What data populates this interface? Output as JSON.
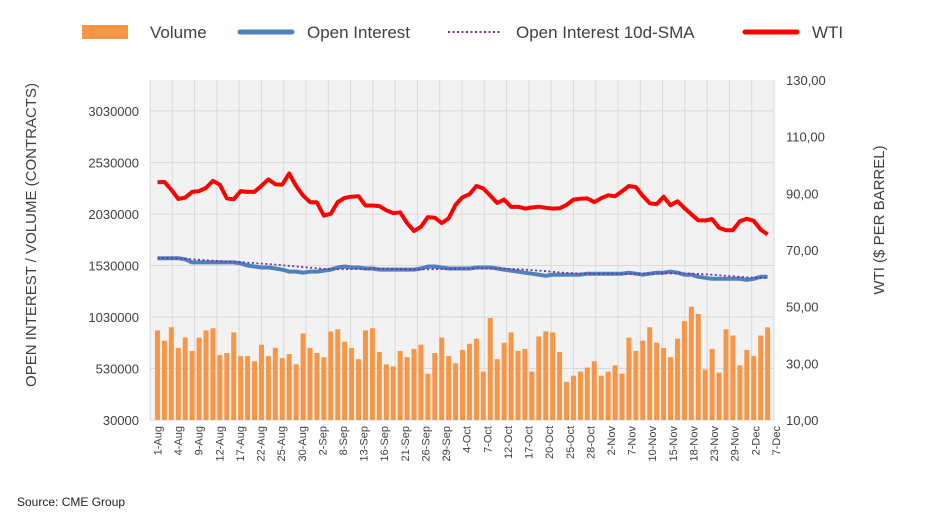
{
  "legend": {
    "volume": "Volume",
    "oi": "Open Interest",
    "sma": "Open Interest 10d-SMA",
    "wti": "WTI"
  },
  "colors": {
    "volume": "#f79646",
    "oi": "#4f81bd",
    "sma": "#7030a0",
    "wti": "#ff0000",
    "grid": "#d9d9d9",
    "plot_bg": "#f2f2f2"
  },
  "source": "Source: CME Group",
  "chart_data": {
    "type": "bar+line",
    "ylabel_left": "OPEN INTEREST / VOLUME (CONTRACTS)",
    "ylabel_right": "WTI ($ PER BARREL)",
    "y_left_ticks": [
      "30000",
      "530000",
      "1030000",
      "1530000",
      "2030000",
      "2530000",
      "3030000"
    ],
    "y_left_range": [
      30000,
      3330000
    ],
    "y_right_ticks": [
      "10,00",
      "30,00",
      "50,00",
      "70,00",
      "90,00",
      "110,00",
      "130,00"
    ],
    "y_right_range": [
      10,
      130
    ],
    "x_tick_labels": [
      "1-Aug",
      "4-Aug",
      "9-Aug",
      "12-Aug",
      "17-Aug",
      "22-Aug",
      "25-Aug",
      "30-Aug",
      "2-Sep",
      "8-Sep",
      "13-Sep",
      "16-Sep",
      "21-Sep",
      "26-Sep",
      "29-Sep",
      "4-Oct",
      "7-Oct",
      "12-Oct",
      "17-Oct",
      "20-Oct",
      "25-Oct",
      "28-Oct",
      "2-Nov",
      "7-Nov",
      "10-Nov",
      "15-Nov",
      "18-Nov",
      "23-Nov",
      "29-Nov",
      "2-Dec",
      "7-Dec"
    ],
    "series": [
      {
        "name": "Volume",
        "type": "bar",
        "axis": "left",
        "values": [
          900000,
          800000,
          930000,
          730000,
          830000,
          700000,
          830000,
          900000,
          920000,
          660000,
          680000,
          880000,
          650000,
          650000,
          600000,
          760000,
          650000,
          730000,
          630000,
          670000,
          570000,
          870000,
          730000,
          680000,
          640000,
          890000,
          910000,
          790000,
          730000,
          620000,
          900000,
          920000,
          690000,
          570000,
          550000,
          700000,
          640000,
          720000,
          760000,
          480000,
          680000,
          830000,
          650000,
          580000,
          710000,
          770000,
          820000,
          500000,
          1020000,
          620000,
          780000,
          880000,
          700000,
          720000,
          500000,
          840000,
          890000,
          880000,
          690000,
          400000,
          460000,
          500000,
          540000,
          600000,
          460000,
          500000,
          560000,
          480000,
          830000,
          700000,
          800000,
          930000,
          780000,
          730000,
          640000,
          820000,
          990000,
          1130000,
          1060000,
          520000,
          720000,
          490000,
          910000,
          850000,
          560000,
          710000,
          650000,
          850000,
          930000
        ]
      },
      {
        "name": "Open Interest",
        "type": "line",
        "axis": "left",
        "values": [
          1600000,
          1600000,
          1600000,
          1600000,
          1590000,
          1560000,
          1560000,
          1560000,
          1560000,
          1560000,
          1560000,
          1560000,
          1550000,
          1530000,
          1520000,
          1510000,
          1510000,
          1500000,
          1490000,
          1470000,
          1470000,
          1460000,
          1470000,
          1470000,
          1480000,
          1490000,
          1510000,
          1520000,
          1510000,
          1510000,
          1500000,
          1500000,
          1490000,
          1490000,
          1490000,
          1490000,
          1490000,
          1490000,
          1500000,
          1520000,
          1520000,
          1510000,
          1500000,
          1500000,
          1500000,
          1500000,
          1510000,
          1510000,
          1510000,
          1500000,
          1490000,
          1480000,
          1470000,
          1460000,
          1450000,
          1440000,
          1430000,
          1440000,
          1440000,
          1440000,
          1440000,
          1440000,
          1450000,
          1450000,
          1450000,
          1450000,
          1450000,
          1450000,
          1460000,
          1450000,
          1440000,
          1450000,
          1460000,
          1460000,
          1470000,
          1460000,
          1440000,
          1440000,
          1420000,
          1410000,
          1400000,
          1400000,
          1400000,
          1400000,
          1400000,
          1390000,
          1400000,
          1420000,
          1420000
        ]
      },
      {
        "name": "Open Interest 10d-SMA",
        "type": "line",
        "style": "dotted",
        "axis": "left",
        "values": [
          1600000,
          1600000,
          1600000,
          1598000,
          1594000,
          1590000,
          1585000,
          1580000,
          1576000,
          1572000,
          1568000,
          1565000,
          1562000,
          1558000,
          1553000,
          1548000,
          1543000,
          1538000,
          1532000,
          1526000,
          1520000,
          1514000,
          1508000,
          1502000,
          1498000,
          1495000,
          1494000,
          1494000,
          1495000,
          1497000,
          1498000,
          1499000,
          1499000,
          1498000,
          1496000,
          1494000,
          1493000,
          1492000,
          1492000,
          1493000,
          1495000,
          1496000,
          1497000,
          1498000,
          1499000,
          1500000,
          1500000,
          1500000,
          1500000,
          1500000,
          1499000,
          1497000,
          1494000,
          1490000,
          1485000,
          1479000,
          1474000,
          1468000,
          1463000,
          1458000,
          1454000,
          1451000,
          1449000,
          1448000,
          1448000,
          1448000,
          1448000,
          1448000,
          1449000,
          1450000,
          1450000,
          1451000,
          1452000,
          1453000,
          1454000,
          1454000,
          1453000,
          1451000,
          1448000,
          1444000,
          1440000,
          1435000,
          1430000,
          1425000,
          1420000,
          1415000,
          1411000,
          1410000,
          1410000
        ]
      },
      {
        "name": "WTI",
        "type": "line",
        "axis": "right",
        "values": [
          93.9,
          94.0,
          91.3,
          88.0,
          88.5,
          90.5,
          90.8,
          91.9,
          94.4,
          93.0,
          88.2,
          87.9,
          90.8,
          90.5,
          90.5,
          92.7,
          94.9,
          93.2,
          93.1,
          97.0,
          92.6,
          89.2,
          86.9,
          86.8,
          82.1,
          82.8,
          86.9,
          88.4,
          88.8,
          89.0,
          85.7,
          85.7,
          85.5,
          84.0,
          83.0,
          83.3,
          79.5,
          76.7,
          78.2,
          81.6,
          81.4,
          79.5,
          81.2,
          86.0,
          88.6,
          89.7,
          92.6,
          91.7,
          89.2,
          86.6,
          87.8,
          85.2,
          85.3,
          84.6,
          85.0,
          85.3,
          84.9,
          84.6,
          84.7,
          85.9,
          87.8,
          88.1,
          88.2,
          86.9,
          88.3,
          89.3,
          89.0,
          90.7,
          92.6,
          92.2,
          89.1,
          86.5,
          86.2,
          88.8,
          85.8,
          87.2,
          84.8,
          82.6,
          80.5,
          80.4,
          80.9,
          77.8,
          77.0,
          77.0,
          80.2,
          81.0,
          80.3,
          77.2,
          75.5
        ]
      }
    ]
  }
}
